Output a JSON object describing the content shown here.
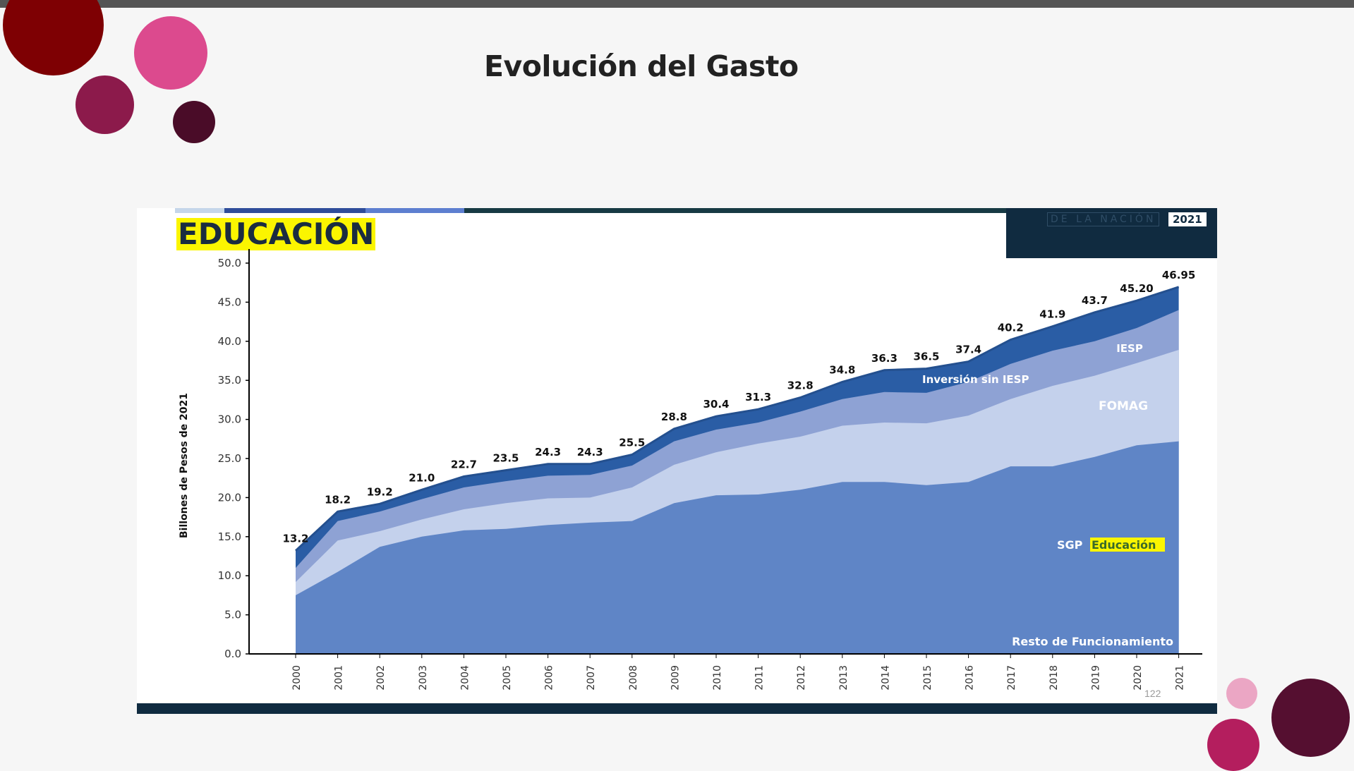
{
  "slide": {
    "title": "Evolución del Gasto"
  },
  "figure": {
    "title": "EDUCACIÓN",
    "brand_text": "DE LA NACIÓN",
    "brand_year": "2021",
    "page_number": "122"
  },
  "colors": {
    "top_bar": "#555555",
    "figure_navy": "#102b40",
    "title_highlight": "#fbf500",
    "series": [
      "#5f85c6",
      "#c4d1ec",
      "#8ea2d4",
      "#2a5da5"
    ],
    "dots": [
      "#7e0003",
      "#dc4a8e",
      "#8c1a4b",
      "#4a0c28",
      "#eba6c4",
      "#b41e5e",
      "#550f30"
    ]
  },
  "chart_data": {
    "type": "area",
    "stacked": true,
    "ylabel": "Billones de Pesos de 2021",
    "xlabel": "",
    "ylim": [
      0,
      50
    ],
    "yticks": [
      "0.0",
      "5.0",
      "10.0",
      "15.0",
      "20.0",
      "25.0",
      "30.0",
      "35.0",
      "40.0",
      "45.0",
      "50.0"
    ],
    "x": [
      "2000",
      "2001",
      "2002",
      "2003",
      "2004",
      "2005",
      "2006",
      "2007",
      "2008",
      "2009",
      "2010",
      "2011",
      "2012",
      "2013",
      "2014",
      "2015",
      "2016",
      "2017",
      "2018",
      "2019",
      "2020",
      "2021"
    ],
    "cumulative": {
      "SGP Educación": [
        7.5,
        10.5,
        13.7,
        15.0,
        15.8,
        16.0,
        16.5,
        16.8,
        17.0,
        19.3,
        20.3,
        20.4,
        21.0,
        22.0,
        22.0,
        21.6,
        22.0,
        24.0,
        24.0,
        25.2,
        26.7,
        27.2
      ],
      "FOMAG": [
        9.2,
        14.5,
        15.7,
        17.2,
        18.5,
        19.3,
        19.9,
        20.0,
        21.3,
        24.2,
        25.8,
        26.9,
        27.8,
        29.2,
        29.6,
        29.5,
        30.5,
        32.6,
        34.3,
        35.6,
        37.2,
        38.9
      ],
      "IESP": [
        11.0,
        17.0,
        18.2,
        19.8,
        21.3,
        22.1,
        22.8,
        22.9,
        24.1,
        27.2,
        28.7,
        29.6,
        31.0,
        32.6,
        33.5,
        33.4,
        34.8,
        37.1,
        38.8,
        40.0,
        41.7,
        44.0
      ],
      "Inversión sin IESP": [
        13.2,
        18.2,
        19.2,
        21.0,
        22.7,
        23.5,
        24.3,
        24.3,
        25.5,
        28.8,
        30.4,
        31.3,
        32.8,
        34.8,
        36.3,
        36.5,
        37.4,
        40.2,
        41.9,
        43.7,
        45.2,
        46.95
      ]
    },
    "total_labels": [
      "13.2",
      "18.2",
      "19.2",
      "21.0",
      "22.7",
      "23.5",
      "24.3",
      "24.3",
      "25.5",
      "28.8",
      "30.4",
      "31.3",
      "32.8",
      "34.8",
      "36.3",
      "36.5",
      "37.4",
      "40.2",
      "41.9",
      "43.7",
      "45.20",
      "46.95"
    ],
    "annotations": {
      "resto": "Resto de Funcionamiento",
      "sgp_prefix": "SGP",
      "sgp_highlight": "Educación",
      "fomag": "FOMAG",
      "iesp": "IESP",
      "inversion": "Inversión sin IESP"
    }
  }
}
